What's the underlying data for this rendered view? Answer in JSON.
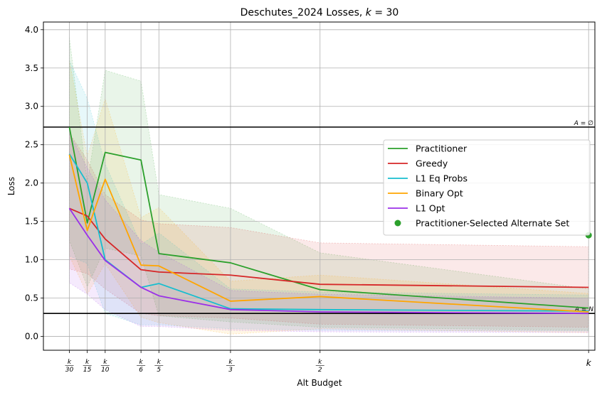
{
  "chart_data": {
    "type": "line",
    "title": "Deschutes_2024 Losses, k = 30",
    "xlabel": "Alt Budget",
    "ylabel": "Loss",
    "ylim": [
      -0.18,
      4.1
    ],
    "yticks": [
      0.0,
      0.5,
      1.0,
      1.5,
      2.0,
      2.5,
      3.0,
      3.5,
      4.0
    ],
    "ytick_labels": [
      "0.0",
      "0.5",
      "1.0",
      "1.5",
      "2.0",
      "2.5",
      "3.0",
      "3.5",
      "4.0"
    ],
    "x": [
      1,
      2,
      3,
      5,
      6,
      10,
      15,
      30
    ],
    "xlim": [
      -0.45,
      30.35
    ],
    "xtick_labels": [
      {
        "num": "k",
        "den": "30"
      },
      {
        "num": "k",
        "den": "15"
      },
      {
        "num": "k",
        "den": "10"
      },
      {
        "num": "k",
        "den": "6"
      },
      {
        "num": "k",
        "den": "5"
      },
      {
        "num": "k",
        "den": "3"
      },
      {
        "num": "k",
        "den": "2"
      },
      {
        "num": "k",
        "den": ""
      }
    ],
    "grid": true,
    "legend_position": "right",
    "series": [
      {
        "name": "Practitioner",
        "color": "#2ca02c",
        "values": [
          2.73,
          1.48,
          2.4,
          2.3,
          1.08,
          0.96,
          0.61,
          0.37
        ],
        "upper": [
          3.9,
          2.0,
          3.47,
          3.33,
          1.85,
          1.67,
          1.09,
          0.62
        ],
        "lower": [
          1.25,
          0.65,
          1.15,
          1.05,
          0.27,
          0.19,
          0.12,
          0.08
        ]
      },
      {
        "name": "Greedy",
        "color": "#d62728",
        "values": [
          1.67,
          1.57,
          1.27,
          0.87,
          0.84,
          0.8,
          0.68,
          0.64
        ],
        "upper": [
          2.65,
          2.3,
          1.85,
          1.52,
          1.47,
          1.42,
          1.22,
          1.17
        ],
        "lower": [
          0.88,
          0.82,
          0.62,
          0.3,
          0.27,
          0.24,
          0.16,
          0.12
        ]
      },
      {
        "name": "L1 Eq Probs",
        "color": "#17becf",
        "values": [
          2.38,
          2.0,
          1.0,
          0.64,
          0.69,
          0.36,
          0.35,
          0.33
        ],
        "upper": [
          3.6,
          3.1,
          2.25,
          1.2,
          1.35,
          0.62,
          0.58,
          0.54
        ],
        "lower": [
          1.05,
          0.95,
          0.3,
          0.15,
          0.15,
          0.1,
          0.08,
          0.07
        ]
      },
      {
        "name": "Binary Opt",
        "color": "#ffa500",
        "values": [
          2.37,
          1.38,
          2.05,
          0.93,
          0.92,
          0.46,
          0.52,
          0.32
        ],
        "upper": [
          3.6,
          2.35,
          3.1,
          1.55,
          1.68,
          0.72,
          0.8,
          0.56
        ],
        "lower": [
          1.05,
          0.55,
          0.95,
          0.25,
          0.18,
          0.03,
          0.1,
          0.05
        ]
      },
      {
        "name": "L1 Opt",
        "color": "#9b30e8",
        "values": [
          1.67,
          1.32,
          0.99,
          0.64,
          0.53,
          0.35,
          0.32,
          0.3
        ],
        "upper": [
          2.65,
          2.2,
          1.78,
          1.25,
          1.1,
          0.6,
          0.55,
          0.5
        ],
        "lower": [
          0.7,
          0.55,
          0.35,
          0.13,
          0.13,
          0.08,
          0.06,
          0.05
        ]
      }
    ],
    "scatter": {
      "name": "Practitioner-Selected Alternate Set",
      "color": "#2ca02c",
      "x": 30,
      "y": 1.32
    },
    "hlines": [
      {
        "y": 2.73,
        "label": "A = ∅"
      },
      {
        "y": 0.3,
        "label": "A = N"
      }
    ]
  }
}
